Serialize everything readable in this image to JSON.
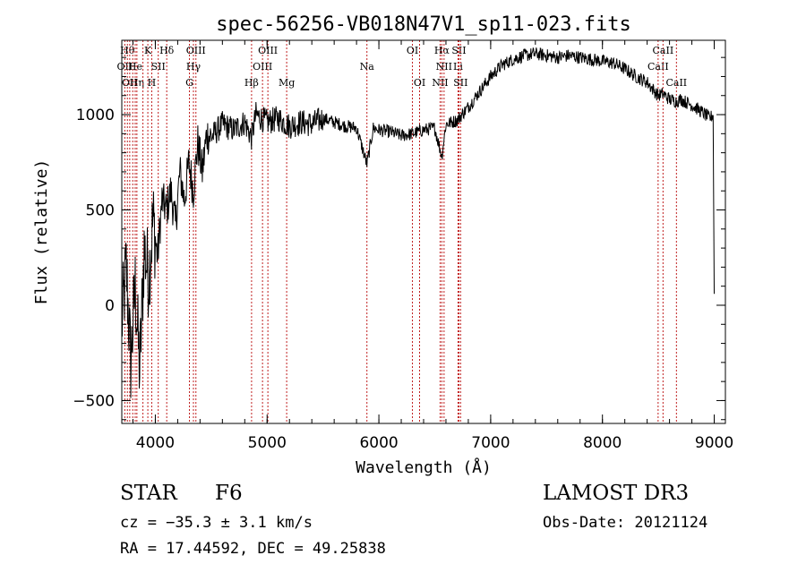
{
  "chart_data": {
    "type": "line",
    "title": "spec-56256-VB018N47V1_sp11-023.fits",
    "xlabel": "Wavelength (Å)",
    "ylabel": "Flux (relative)",
    "xlim": [
      3700,
      9100
    ],
    "ylim": [
      -620,
      1390
    ],
    "x_ticks": [
      4000,
      5000,
      6000,
      7000,
      8000,
      9000
    ],
    "y_ticks": [
      -500,
      0,
      500,
      1000
    ],
    "x_minor_step": 200,
    "y_minor_step": 100,
    "series": [
      {
        "name": "flux",
        "color": "#000000",
        "x": [
          3700,
          3740,
          3780,
          3820,
          3860,
          3900,
          3940,
          3980,
          4020,
          4060,
          4100,
          4140,
          4180,
          4220,
          4260,
          4300,
          4340,
          4380,
          4420,
          4460,
          4500,
          4600,
          4700,
          4800,
          4860,
          4900,
          5000,
          5100,
          5200,
          5300,
          5400,
          5500,
          5600,
          5700,
          5800,
          5893,
          5950,
          6000,
          6100,
          6200,
          6300,
          6400,
          6500,
          6563,
          6600,
          6700,
          6800,
          6900,
          7000,
          7100,
          7200,
          7300,
          7400,
          7500,
          7600,
          7700,
          7800,
          7900,
          8000,
          8100,
          8200,
          8300,
          8400,
          8498,
          8542,
          8600,
          8662,
          8700,
          8800,
          8900,
          8960,
          8990,
          9000
        ],
        "y": [
          -100,
          200,
          -300,
          100,
          -350,
          300,
          150,
          450,
          250,
          550,
          500,
          600,
          420,
          700,
          550,
          750,
          600,
          850,
          700,
          900,
          880,
          950,
          920,
          960,
          880,
          1000,
          960,
          980,
          940,
          960,
          950,
          980,
          960,
          940,
          930,
          740,
          930,
          920,
          910,
          890,
          900,
          920,
          930,
          780,
          950,
          970,
          1040,
          1120,
          1200,
          1260,
          1290,
          1310,
          1320,
          1310,
          1300,
          1310,
          1300,
          1290,
          1280,
          1270,
          1240,
          1200,
          1170,
          1100,
          1110,
          1080,
          1070,
          1080,
          1050,
          1010,
          980,
          1000,
          60
        ]
      }
    ],
    "lines": [
      {
        "wl": 3727,
        "row": 1,
        "label": "OII"
      },
      {
        "wl": 3750,
        "row": 0,
        "label": "Hθ"
      },
      {
        "wl": 3771,
        "row": 2,
        "label": "OII"
      },
      {
        "wl": 3798,
        "row": 0,
        "label": ""
      },
      {
        "wl": 3820,
        "row": 1,
        "label": "He"
      },
      {
        "wl": 3835,
        "row": 2,
        "label": "Hη"
      },
      {
        "wl": 3889,
        "row": 2,
        "label": ""
      },
      {
        "wl": 3933,
        "row": 0,
        "label": "K"
      },
      {
        "wl": 3968,
        "row": 2,
        "label": "H"
      },
      {
        "wl": 4026,
        "row": 1,
        "label": "SII"
      },
      {
        "wl": 4102,
        "row": 0,
        "label": "Hδ"
      },
      {
        "wl": 4305,
        "row": 2,
        "label": "G"
      },
      {
        "wl": 4341,
        "row": 1,
        "label": "Hγ"
      },
      {
        "wl": 4363,
        "row": 0,
        "label": "OIII"
      },
      {
        "wl": 4861,
        "row": 2,
        "label": "Hβ"
      },
      {
        "wl": 4959,
        "row": 1,
        "label": "OIII"
      },
      {
        "wl": 5007,
        "row": 0,
        "label": "OIII"
      },
      {
        "wl": 5175,
        "row": 2,
        "label": "Mg"
      },
      {
        "wl": 5893,
        "row": 1,
        "label": "Na"
      },
      {
        "wl": 6300,
        "row": 0,
        "label": "OI"
      },
      {
        "wl": 6364,
        "row": 2,
        "label": "OI"
      },
      {
        "wl": 6548,
        "row": 2,
        "label": "NII"
      },
      {
        "wl": 6563,
        "row": 0,
        "label": "Hα"
      },
      {
        "wl": 6583,
        "row": 1,
        "label": "NII"
      },
      {
        "wl": 6708,
        "row": 1,
        "label": "Li"
      },
      {
        "wl": 6716,
        "row": 0,
        "label": "SII"
      },
      {
        "wl": 6731,
        "row": 2,
        "label": "SII"
      },
      {
        "wl": 8498,
        "row": 1,
        "label": "CaII"
      },
      {
        "wl": 8542,
        "row": 0,
        "label": "CaII"
      },
      {
        "wl": 8662,
        "row": 2,
        "label": "CaII"
      }
    ]
  },
  "info": {
    "class": "STAR",
    "subclass": "F6",
    "survey": "LAMOST DR3",
    "cz": "cz = −35.3 ± 3.1 km/s",
    "obs_date": "Obs-Date: 20121124",
    "coords": "RA =  17.44592, DEC =  49.25838"
  }
}
